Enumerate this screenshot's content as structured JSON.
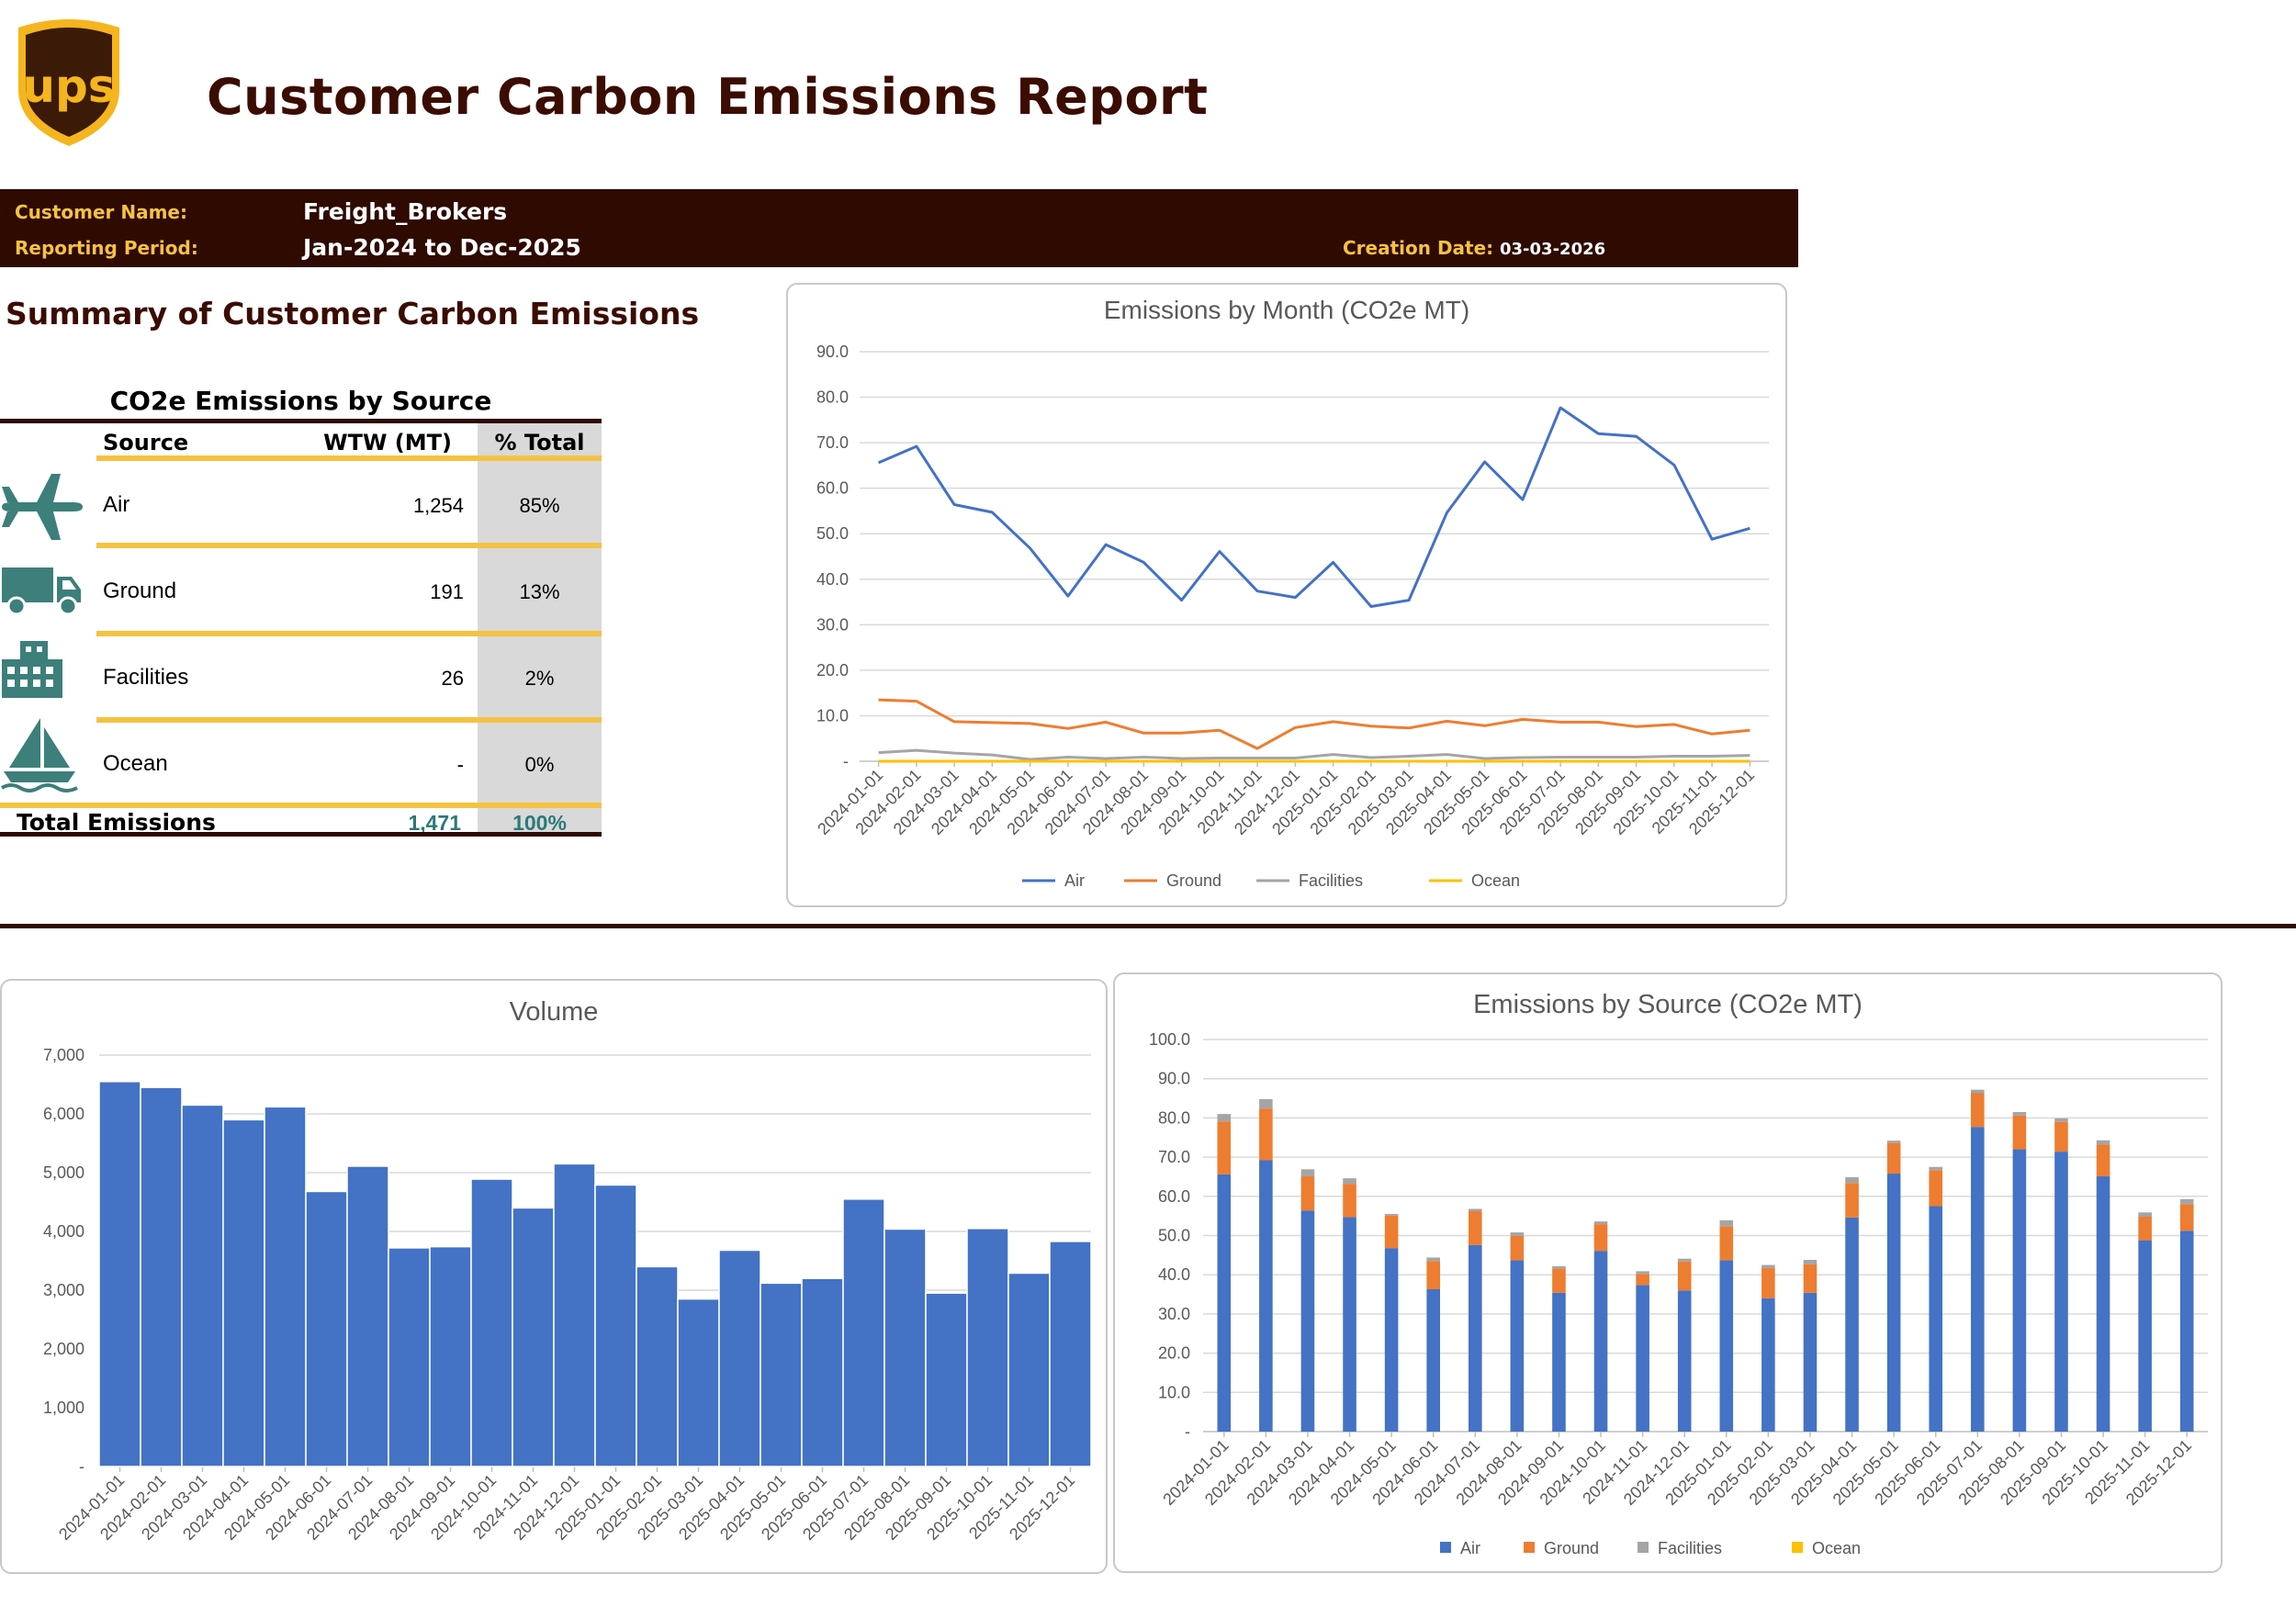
{
  "header": {
    "logo_text": "ups",
    "title": "Customer Carbon Emissions Report"
  },
  "info_bar": {
    "customer_label": "Customer Name:",
    "customer_value": "Freight_Brokers",
    "period_label": "Reporting Period:",
    "period_value": "Jan-2024 to Dec-2025",
    "creation_label": "Creation Date:",
    "creation_value": "03-03-2026"
  },
  "summary": {
    "heading": "Summary of Customer Carbon Emissions",
    "table_title": "CO2e Emissions by Source",
    "columns": [
      "Source",
      "WTW (MT)",
      "% Total"
    ],
    "rows": [
      {
        "source": "Air",
        "wtw": "1,254",
        "pct": "85%",
        "icon": "airplane-icon"
      },
      {
        "source": "Ground",
        "wtw": "191",
        "pct": "13%",
        "icon": "truck-icon"
      },
      {
        "source": "Facilities",
        "wtw": "26",
        "pct": "2%",
        "icon": "building-icon"
      },
      {
        "source": "Ocean",
        "wtw": "-",
        "pct": "0%",
        "icon": "ship-icon"
      }
    ],
    "total_label": "Total Emissions",
    "total_wtw": "1,471",
    "total_pct": "100%"
  },
  "colors": {
    "brown": "#2e0a00",
    "gold": "#f5c242",
    "teal": "#3d7f7a",
    "air": "#4472c4",
    "ground": "#ed7d31",
    "facilities": "#a5a5a5",
    "ocean": "#ffc000"
  },
  "chart_data": [
    {
      "id": "emissions-by-month",
      "type": "line",
      "title": "Emissions by Month (CO2e MT)",
      "categories": [
        "2024-01-01",
        "2024-02-01",
        "2024-03-01",
        "2024-04-01",
        "2024-05-01",
        "2024-06-01",
        "2024-07-01",
        "2024-08-01",
        "2024-09-01",
        "2024-10-01",
        "2024-11-01",
        "2024-12-01",
        "2025-01-01",
        "2025-02-01",
        "2025-03-01",
        "2025-04-01",
        "2025-05-01",
        "2025-06-01",
        "2025-07-01",
        "2025-08-01",
        "2025-09-01",
        "2025-10-01",
        "2025-11-01",
        "2025-12-01"
      ],
      "y_ticks": [
        "-",
        "10.0",
        "20.0",
        "30.0",
        "40.0",
        "50.0",
        "60.0",
        "70.0",
        "80.0",
        "90.0"
      ],
      "ylim": [
        0,
        90
      ],
      "grid": true,
      "legend_position": "bottom",
      "series": [
        {
          "name": "Air",
          "color": "#4472c4",
          "values": [
            65.6,
            69.2,
            56.4,
            54.7,
            46.8,
            36.3,
            47.6,
            43.7,
            35.4,
            46.1,
            37.4,
            36.0,
            43.7,
            34.0,
            35.4,
            54.6,
            65.8,
            57.5,
            77.7,
            72.0,
            71.4,
            65.1,
            48.8,
            51.2
          ]
        },
        {
          "name": "Ground",
          "color": "#ed7d31",
          "values": [
            13.5,
            13.2,
            8.7,
            8.5,
            8.3,
            7.2,
            8.6,
            6.2,
            6.2,
            6.8,
            2.8,
            7.4,
            8.7,
            7.7,
            7.3,
            8.8,
            7.8,
            9.2,
            8.6,
            8.6,
            7.6,
            8.1,
            6.0,
            6.8
          ]
        },
        {
          "name": "Facilities",
          "color": "#a5a5a5",
          "values": [
            1.9,
            2.4,
            1.8,
            1.4,
            0.4,
            0.9,
            0.6,
            0.9,
            0.6,
            0.7,
            0.7,
            0.7,
            1.5,
            0.8,
            1.1,
            1.5,
            0.6,
            0.8,
            0.9,
            0.9,
            0.9,
            1.1,
            1.1,
            1.3
          ]
        },
        {
          "name": "Ocean",
          "color": "#ffc000",
          "values": [
            0,
            0,
            0,
            0,
            0,
            0,
            0,
            0,
            0,
            0,
            0,
            0,
            0,
            0,
            0,
            0,
            0,
            0,
            0,
            0,
            0,
            0,
            0,
            0
          ]
        }
      ]
    },
    {
      "id": "volume",
      "type": "bar",
      "title": "Volume",
      "categories": [
        "2024-01-01",
        "2024-02-01",
        "2024-03-01",
        "2024-04-01",
        "2024-05-01",
        "2024-06-01",
        "2024-07-01",
        "2024-08-01",
        "2024-09-01",
        "2024-10-01",
        "2024-11-01",
        "2024-12-01",
        "2025-01-01",
        "2025-02-01",
        "2025-03-01",
        "2025-04-01",
        "2025-05-01",
        "2025-06-01",
        "2025-07-01",
        "2025-08-01",
        "2025-09-01",
        "2025-10-01",
        "2025-11-01",
        "2025-12-01"
      ],
      "y_ticks": [
        "-",
        "1,000",
        "2,000",
        "3,000",
        "4,000",
        "5,000",
        "6,000",
        "7,000"
      ],
      "ylim": [
        0,
        7000
      ],
      "grid": true,
      "series": [
        {
          "name": "",
          "color": "#4472c4",
          "values": [
            6550,
            6450,
            6150,
            5900,
            6120,
            4680,
            5110,
            3720,
            3740,
            4890,
            4400,
            5150,
            4790,
            3400,
            2850,
            3680,
            3120,
            3200,
            4550,
            4040,
            2950,
            4050,
            3290,
            3830
          ]
        }
      ]
    },
    {
      "id": "emissions-by-source",
      "type": "bar",
      "stacked": true,
      "title": "Emissions by Source (CO2e MT)",
      "categories": [
        "2024-01-01",
        "2024-02-01",
        "2024-03-01",
        "2024-04-01",
        "2024-05-01",
        "2024-06-01",
        "2024-07-01",
        "2024-08-01",
        "2024-09-01",
        "2024-10-01",
        "2024-11-01",
        "2024-12-01",
        "2025-01-01",
        "2025-02-01",
        "2025-03-01",
        "2025-04-01",
        "2025-05-01",
        "2025-06-01",
        "2025-07-01",
        "2025-08-01",
        "2025-09-01",
        "2025-10-01",
        "2025-11-01",
        "2025-12-01"
      ],
      "y_ticks": [
        "-",
        "10.0",
        "20.0",
        "30.0",
        "40.0",
        "50.0",
        "60.0",
        "70.0",
        "80.0",
        "90.0",
        "100.0"
      ],
      "ylim": [
        0,
        100
      ],
      "grid": true,
      "legend_position": "bottom",
      "series": [
        {
          "name": "Air",
          "color": "#4472c4",
          "values": [
            65.6,
            69.2,
            56.4,
            54.7,
            46.8,
            36.3,
            47.6,
            43.7,
            35.4,
            46.1,
            37.4,
            36.0,
            43.7,
            34.0,
            35.4,
            54.6,
            65.8,
            57.5,
            77.7,
            72.0,
            71.4,
            65.1,
            48.8,
            51.2
          ]
        },
        {
          "name": "Ground",
          "color": "#ed7d31",
          "values": [
            13.5,
            13.2,
            8.7,
            8.5,
            8.3,
            7.2,
            8.6,
            6.2,
            6.2,
            6.8,
            2.8,
            7.4,
            8.7,
            7.7,
            7.3,
            8.8,
            7.8,
            9.2,
            8.6,
            8.6,
            7.6,
            8.1,
            6.0,
            6.8
          ]
        },
        {
          "name": "Facilities",
          "color": "#a5a5a5",
          "values": [
            1.9,
            2.4,
            1.8,
            1.4,
            0.4,
            0.9,
            0.6,
            0.9,
            0.6,
            0.7,
            0.7,
            0.7,
            1.5,
            0.8,
            1.1,
            1.5,
            0.6,
            0.8,
            0.9,
            0.9,
            0.9,
            1.1,
            1.1,
            1.3
          ]
        },
        {
          "name": "Ocean",
          "color": "#ffc000",
          "values": [
            0,
            0,
            0,
            0,
            0,
            0,
            0,
            0,
            0,
            0,
            0,
            0,
            0,
            0,
            0,
            0,
            0,
            0,
            0,
            0,
            0,
            0,
            0,
            0
          ]
        }
      ]
    }
  ]
}
